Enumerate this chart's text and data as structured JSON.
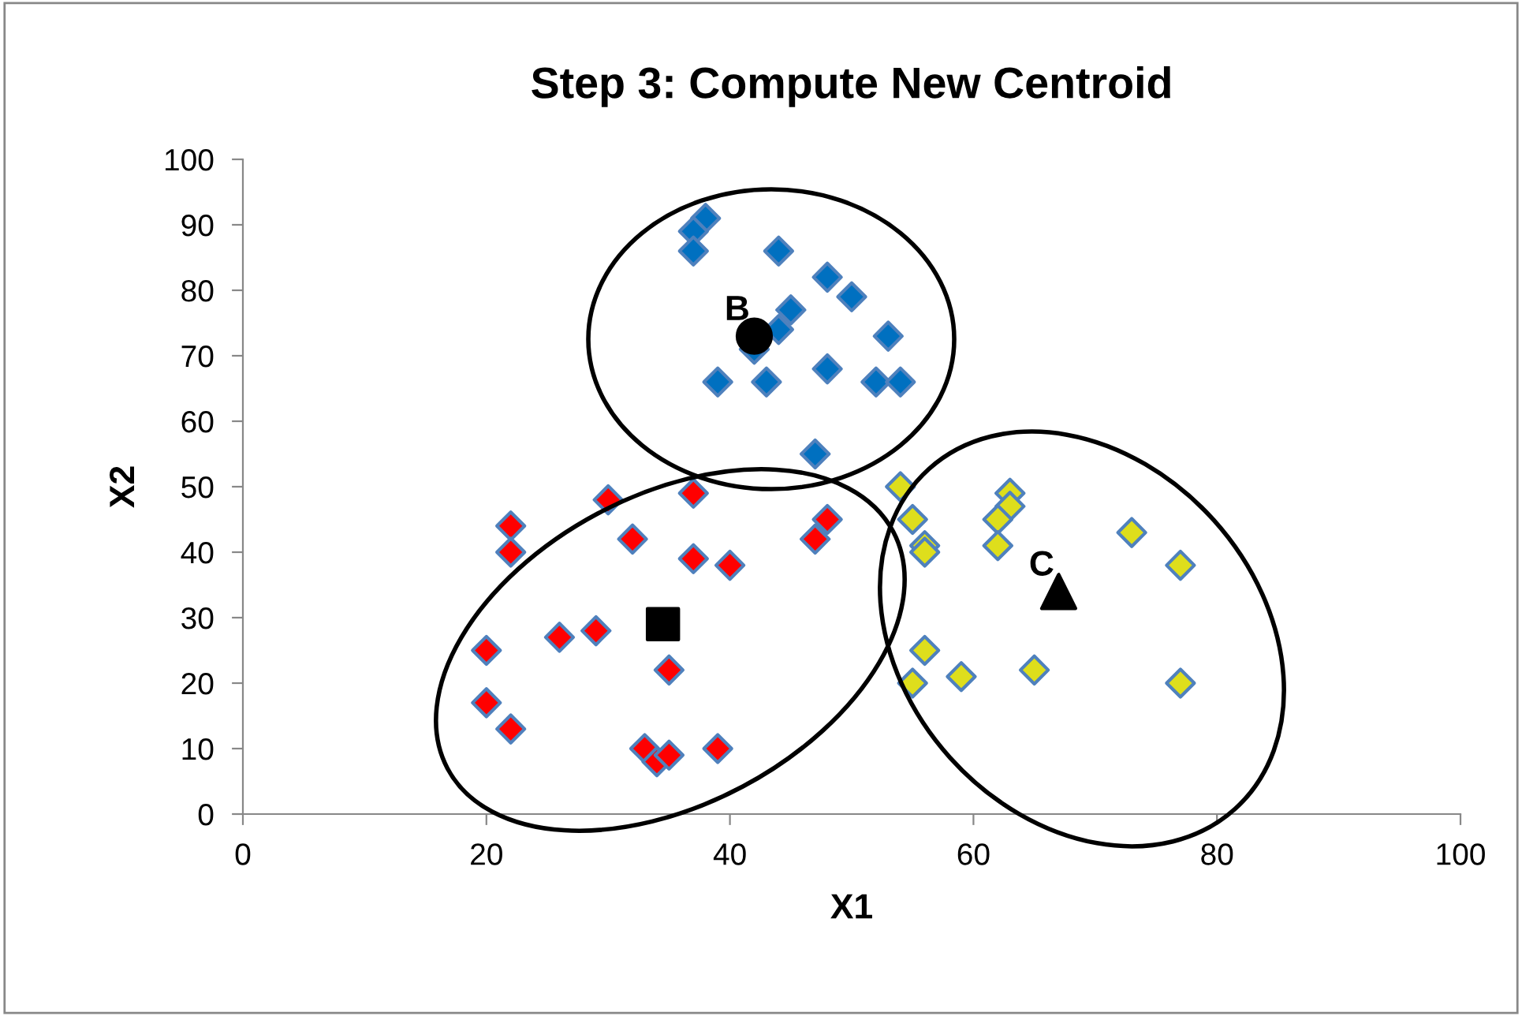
{
  "chart_data": {
    "type": "scatter",
    "title": "Step 3: Compute New Centroid",
    "xlabel": "X1",
    "ylabel": "X2",
    "xlim": [
      0,
      100
    ],
    "ylim": [
      0,
      100
    ],
    "xticks": [
      0,
      20,
      40,
      60,
      80,
      100
    ],
    "yticks": [
      0,
      10,
      20,
      30,
      40,
      50,
      60,
      70,
      80,
      90,
      100
    ],
    "grid": false,
    "legend": false,
    "marker": "diamond",
    "series": [
      {
        "color": "#0070c0",
        "x": [
          38,
          37,
          37,
          44,
          48,
          50,
          45,
          44,
          42,
          53,
          48,
          39,
          43,
          52,
          54,
          47
        ],
        "values": [
          91,
          89,
          86,
          86,
          82,
          79,
          77,
          74,
          71,
          73,
          68,
          66,
          66,
          66,
          66,
          55
        ]
      },
      {
        "color": "#ff0000",
        "x": [
          22,
          22,
          30,
          37,
          32,
          37,
          40,
          48,
          47,
          20,
          26,
          29,
          35,
          20,
          22,
          33,
          34,
          35,
          39
        ],
        "values": [
          44,
          40,
          48,
          49,
          42,
          39,
          38,
          45,
          42,
          25,
          27,
          28,
          22,
          17,
          13,
          10,
          8,
          9,
          10
        ]
      },
      {
        "color": "#dede1c",
        "x": [
          54,
          55,
          56,
          56,
          63,
          63,
          62,
          62,
          73,
          77,
          56,
          55,
          59,
          65,
          77
        ],
        "values": [
          50,
          45,
          41,
          40,
          49,
          47,
          45,
          41,
          43,
          38,
          25,
          20,
          21,
          22,
          20
        ]
      },
      {
        "color": "#000000",
        "marker": "circle",
        "x": [
          42
        ],
        "values": [
          73
        ]
      },
      {
        "color": "#000000",
        "marker": "square",
        "x": [
          34.5
        ],
        "values": [
          29
        ]
      },
      {
        "color": "#000000",
        "marker": "triangle",
        "x": [
          67
        ],
        "values": [
          34
        ]
      }
    ],
    "annotations": [
      {
        "text": "B",
        "x": 42,
        "y": 73
      },
      {
        "text": "C",
        "x": 67,
        "y": 34
      }
    ]
  }
}
